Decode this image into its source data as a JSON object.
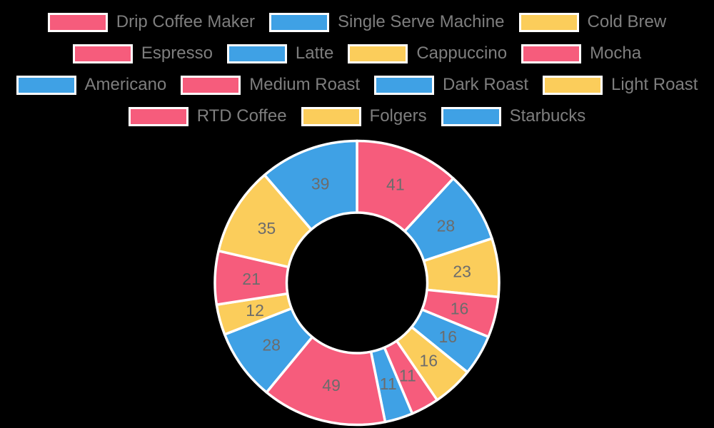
{
  "background_color": "#000000",
  "colors": {
    "pink": "#f65c7c",
    "blue": "#3fa1e5",
    "yellow": "#fbcd5b",
    "slice_border": "#ffffff",
    "value_label_color": "#6c6c6c",
    "legend_text_color": "#7e7e7e"
  },
  "legend": {
    "rows": [
      {
        "items": [
          {
            "label": "Drip Coffee Maker",
            "color": "pink"
          },
          {
            "label": "Single Serve Machine",
            "color": "blue"
          },
          {
            "label": "Cold Brew",
            "color": "yellow"
          }
        ]
      },
      {
        "items": [
          {
            "label": "Espresso",
            "color": "pink"
          },
          {
            "label": "Latte",
            "color": "blue"
          },
          {
            "label": "Cappuccino",
            "color": "yellow"
          },
          {
            "label": "Mocha",
            "color": "pink"
          }
        ]
      },
      {
        "items": [
          {
            "label": "Americano",
            "color": "blue"
          },
          {
            "label": "Medium Roast",
            "color": "pink"
          },
          {
            "label": "Dark Roast",
            "color": "blue"
          },
          {
            "label": "Light Roast",
            "color": "yellow"
          }
        ]
      },
      {
        "items": [
          {
            "label": "RTD Coffee",
            "color": "pink"
          },
          {
            "label": "Folgers",
            "color": "yellow"
          },
          {
            "label": "Starbucks",
            "color": "blue"
          }
        ]
      }
    ]
  },
  "chart_data": {
    "type": "pie",
    "subtype": "donut",
    "direction": "clockwise",
    "start_angle": "top",
    "hole_ratio": 0.5,
    "legend_position": "top",
    "value_labels_shown": true,
    "categories": [
      "Drip Coffee Maker",
      "Single Serve Machine",
      "Cold Brew",
      "Espresso",
      "Latte",
      "Cappuccino",
      "Mocha",
      "Americano",
      "Medium Roast",
      "Dark Roast",
      "Light Roast",
      "RTD Coffee",
      "Folgers",
      "Starbucks"
    ],
    "values": [
      41,
      28,
      23,
      16,
      16,
      16,
      11,
      11,
      49,
      28,
      12,
      21,
      35,
      39
    ],
    "slice_colors": [
      "pink",
      "blue",
      "yellow",
      "pink",
      "blue",
      "yellow",
      "pink",
      "blue",
      "pink",
      "blue",
      "yellow",
      "pink",
      "yellow",
      "blue"
    ],
    "total": 346
  }
}
